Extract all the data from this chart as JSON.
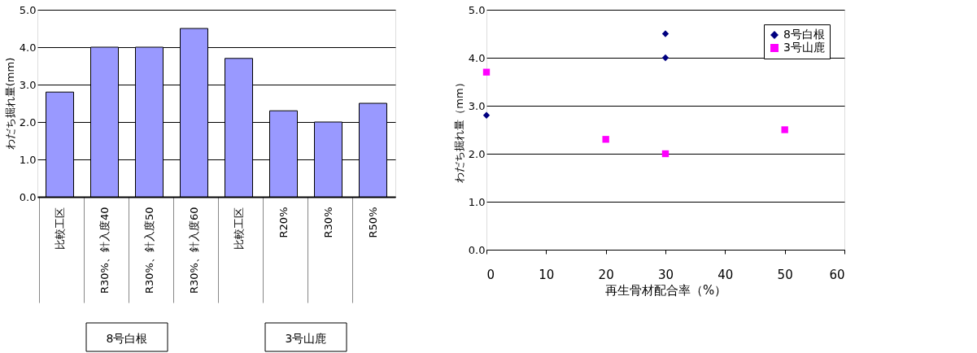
{
  "chart_data": [
    {
      "type": "bar",
      "ylabel": "わだち掘れ量(mm)",
      "categories": [
        "比較工区",
        "R30%、針入度40",
        "R30%、針入度50",
        "R30%、針入度60",
        "比較工区",
        "R20%",
        "R30%",
        "R50%"
      ],
      "values": [
        2.8,
        4.0,
        4.0,
        4.5,
        3.7,
        2.3,
        2.0,
        2.5
      ],
      "color": "#9999ff",
      "ylim": [
        0,
        5
      ],
      "yticks": [
        {
          "value": 0,
          "label": "0.0"
        },
        {
          "value": 1,
          "label": "1.0"
        },
        {
          "value": 2,
          "label": "2.0"
        },
        {
          "value": 3,
          "label": "3.0"
        },
        {
          "value": 4,
          "label": "4.0"
        },
        {
          "value": 5,
          "label": "5.0"
        }
      ],
      "grid": "y",
      "annotations": [
        "8号白根",
        "3号山鹿"
      ]
    },
    {
      "type": "scatter",
      "xlabel": "再生骨材配合率（%）",
      "ylabel": "わだち掘れ量（mm）",
      "series": [
        {
          "name": "8号白根",
          "color": "#000080",
          "marker": "diamond",
          "x": [
            0,
            30,
            30
          ],
          "values": [
            2.8,
            4.5,
            4.0
          ]
        },
        {
          "name": "3号山鹿",
          "color": "#ff00ff",
          "marker": "square",
          "x": [
            0,
            20,
            30,
            50
          ],
          "values": [
            3.7,
            2.3,
            2.0,
            2.5
          ]
        }
      ],
      "xlim": [
        0,
        60
      ],
      "xticks": [
        0,
        10,
        20,
        30,
        40,
        50,
        60
      ],
      "ylim": [
        0,
        5
      ],
      "yticks": [
        {
          "value": 0,
          "label": "0.0"
        },
        {
          "value": 1,
          "label": "1.0"
        },
        {
          "value": 2,
          "label": "2.0"
        },
        {
          "value": 3,
          "label": "3.0"
        },
        {
          "value": 4,
          "label": "4.0"
        },
        {
          "value": 5,
          "label": "5.0"
        }
      ],
      "grid": "y",
      "legend": "top right"
    }
  ]
}
